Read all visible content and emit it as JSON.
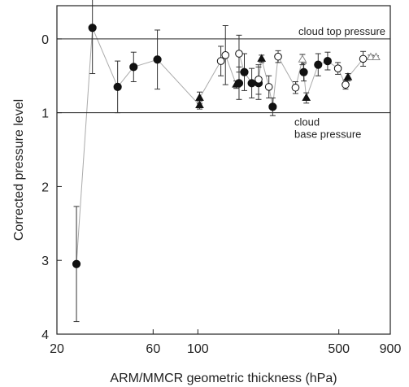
{
  "chart_data": {
    "type": "scatter",
    "title": "",
    "xlabel": "ARM/MMCR geometric thickness (hPa)",
    "ylabel": "Corrected pressure level",
    "x_scale": "log",
    "xlim": [
      20,
      900
    ],
    "ylim": [
      4,
      -0.45
    ],
    "y_inverted": true,
    "x_ticks": [
      20,
      60,
      100,
      500,
      900
    ],
    "x_tick_labels": [
      "20",
      "60",
      "100",
      "500",
      "900"
    ],
    "y_ticks": [
      0,
      1,
      2,
      3,
      4
    ],
    "y_tick_labels": [
      "0",
      "1",
      "2",
      "3",
      "4"
    ],
    "grid": false,
    "reference_lines": [
      {
        "y": 0,
        "label": "cloud top pressure"
      },
      {
        "y": 1,
        "label": "cloud base pressure"
      }
    ],
    "connecting_line": true,
    "series": [
      {
        "marker": "filled-circle",
        "points": [
          {
            "x": 25,
            "y": 3.05,
            "err": 0.78
          },
          {
            "x": 30,
            "y": -0.15,
            "err": 0.62
          },
          {
            "x": 40,
            "y": 0.65,
            "err": 0.35
          },
          {
            "x": 48,
            "y": 0.38,
            "err": 0.2
          },
          {
            "x": 63,
            "y": 0.28,
            "err": 0.4
          },
          {
            "x": 160,
            "y": 0.6,
            "err": 0.22
          },
          {
            "x": 170,
            "y": 0.45,
            "err": 0.25
          },
          {
            "x": 185,
            "y": 0.6,
            "err": 0.2
          },
          {
            "x": 200,
            "y": 0.6,
            "err": 0.22
          },
          {
            "x": 235,
            "y": 0.92,
            "err": 0.12
          },
          {
            "x": 335,
            "y": 0.45,
            "err": 0.12
          },
          {
            "x": 395,
            "y": 0.35,
            "err": 0.15
          },
          {
            "x": 440,
            "y": 0.3,
            "err": 0.12
          }
        ]
      },
      {
        "marker": "open-circle",
        "points": [
          {
            "x": 130,
            "y": 0.3,
            "err": 0.2
          },
          {
            "x": 137,
            "y": 0.22,
            "err": 0.4
          },
          {
            "x": 160,
            "y": 0.2,
            "err": 0.25
          },
          {
            "x": 200,
            "y": 0.55,
            "err": 0.2
          },
          {
            "x": 225,
            "y": 0.65,
            "err": 0.15
          },
          {
            "x": 250,
            "y": 0.24,
            "err": 0.08
          },
          {
            "x": 305,
            "y": 0.66,
            "err": 0.08
          },
          {
            "x": 495,
            "y": 0.4,
            "err": 0.08
          },
          {
            "x": 540,
            "y": 0.62,
            "err": 0.06
          },
          {
            "x": 660,
            "y": 0.27,
            "err": 0.1
          }
        ]
      },
      {
        "marker": "filled-triangle",
        "points": [
          {
            "x": 102,
            "y": 0.9,
            "err": 0.05
          },
          {
            "x": 102,
            "y": 0.8,
            "err": 0.08
          },
          {
            "x": 155,
            "y": 0.62,
            "err": 0.05
          },
          {
            "x": 207,
            "y": 0.27,
            "err": 0.05
          },
          {
            "x": 345,
            "y": 0.8,
            "err": 0.07
          },
          {
            "x": 555,
            "y": 0.52,
            "err": 0.05
          }
        ]
      },
      {
        "marker": "open-triangle",
        "points": [
          {
            "x": 330,
            "y": 0.28,
            "err": 0.07
          },
          {
            "x": 720,
            "y": 0.25,
            "err": 0.03
          },
          {
            "x": 765,
            "y": 0.25,
            "err": 0.02
          }
        ]
      }
    ]
  }
}
